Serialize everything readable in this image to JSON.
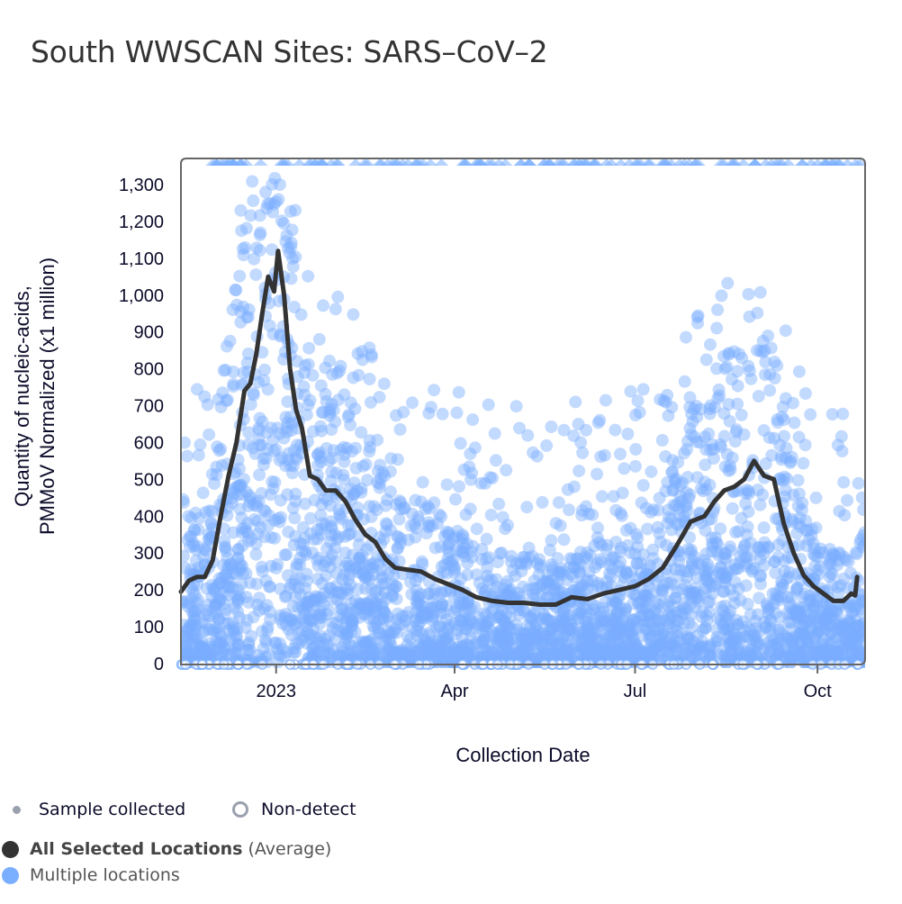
{
  "title": "South WWSCAN Sites: SARS–CoV–2",
  "colors": {
    "scatter": "#7aaeff",
    "average_line": "#333333",
    "axis": "#666666",
    "legend_grey": "#9aa0ad"
  },
  "legend": {
    "sample_collected": "Sample collected",
    "non_detect": "Non-detect",
    "average_bold": "All Selected Locations",
    "average_suffix": "(Average)",
    "multiple_locations": "Multiple locations"
  },
  "chart_data": {
    "type": "scatter",
    "title": "South WWSCAN Sites: SARS–CoV–2",
    "xlabel": "Collection Date",
    "ylabel_line1": "Quantity of nucleic-acids,",
    "ylabel_line2": "PMMoV Normalized (x1 million)",
    "xlim": [
      "2022-11-14",
      "2023-10-25"
    ],
    "ylim": [
      0,
      1360
    ],
    "y_ticks": [
      0,
      100,
      200,
      300,
      400,
      500,
      600,
      700,
      800,
      900,
      1000,
      1100,
      1200,
      1300
    ],
    "y_tick_labels": [
      "0",
      "100",
      "200",
      "300",
      "400",
      "500",
      "600",
      "700",
      "800",
      "900",
      "1,000",
      "1,100",
      "1,200",
      "1,300"
    ],
    "x_ticks": [
      "2023-01-01",
      "2023-04-01",
      "2023-07-01",
      "2023-10-01"
    ],
    "x_tick_labels": [
      "2023",
      "Apr",
      "Jul",
      "Oct"
    ],
    "grid": false,
    "series": [
      {
        "name": "All Selected Locations (Average)",
        "type": "line",
        "x": [
          "2022-11-14",
          "2022-11-18",
          "2022-11-22",
          "2022-11-26",
          "2022-11-30",
          "2022-12-04",
          "2022-12-08",
          "2022-12-12",
          "2022-12-16",
          "2022-12-19",
          "2022-12-22",
          "2022-12-25",
          "2022-12-28",
          "2022-12-31",
          "2023-01-02",
          "2023-01-05",
          "2023-01-08",
          "2023-01-11",
          "2023-01-14",
          "2023-01-18",
          "2023-01-22",
          "2023-01-26",
          "2023-01-31",
          "2023-02-05",
          "2023-02-10",
          "2023-02-15",
          "2023-02-20",
          "2023-02-25",
          "2023-03-02",
          "2023-03-08",
          "2023-03-15",
          "2023-03-22",
          "2023-03-29",
          "2023-04-05",
          "2023-04-12",
          "2023-04-20",
          "2023-04-28",
          "2023-05-06",
          "2023-05-14",
          "2023-05-22",
          "2023-05-30",
          "2023-06-07",
          "2023-06-15",
          "2023-06-23",
          "2023-07-01",
          "2023-07-08",
          "2023-07-15",
          "2023-07-22",
          "2023-07-29",
          "2023-08-05",
          "2023-08-10",
          "2023-08-15",
          "2023-08-20",
          "2023-08-25",
          "2023-08-30",
          "2023-09-04",
          "2023-09-09",
          "2023-09-14",
          "2023-09-19",
          "2023-09-24",
          "2023-09-29",
          "2023-10-04",
          "2023-10-09",
          "2023-10-14",
          "2023-10-18",
          "2023-10-20",
          "2023-10-21"
        ],
        "y": [
          195,
          225,
          235,
          235,
          280,
          400,
          510,
          600,
          740,
          760,
          840,
          950,
          1050,
          1010,
          1120,
          1000,
          800,
          690,
          640,
          510,
          500,
          470,
          470,
          440,
          390,
          350,
          330,
          285,
          260,
          255,
          250,
          230,
          215,
          200,
          180,
          170,
          165,
          165,
          160,
          160,
          180,
          175,
          190,
          200,
          210,
          230,
          260,
          320,
          385,
          400,
          440,
          470,
          480,
          500,
          550,
          510,
          500,
          380,
          300,
          240,
          210,
          190,
          170,
          170,
          190,
          185,
          235
        ]
      },
      {
        "name": "Multiple locations",
        "type": "scatter",
        "note": "individual site samples; dense cloud concentrated below ~300, spread up to and beyond 1,360 (clipped, shown as triangles at top)"
      }
    ],
    "legend": [
      "Sample collected",
      "Non-detect",
      "All Selected Locations (Average)",
      "Multiple locations"
    ]
  }
}
